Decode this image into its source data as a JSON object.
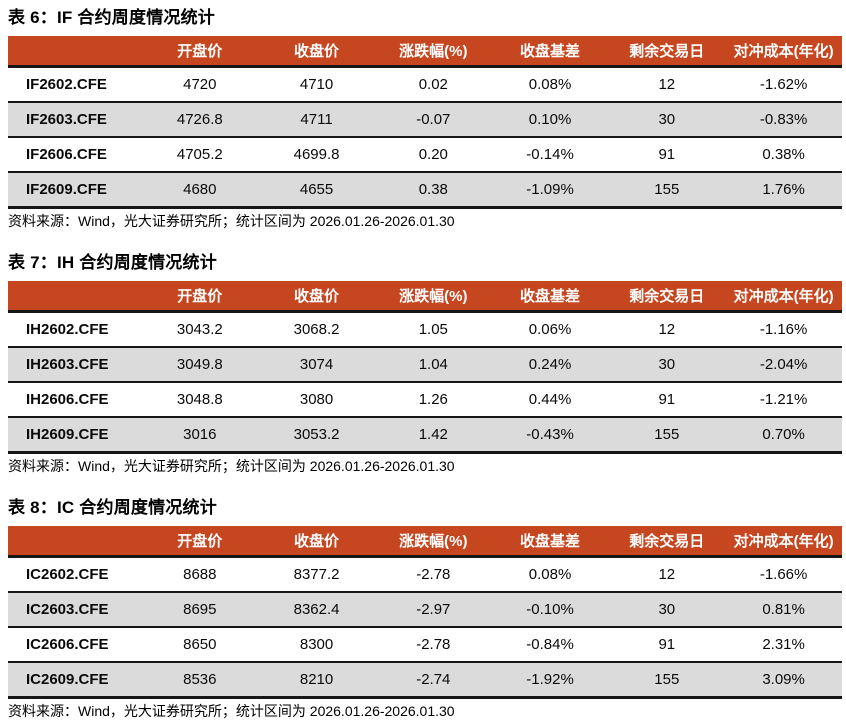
{
  "colors": {
    "header_bg": "#C5461F",
    "header_text": "#ffffff",
    "row_alt_bg": "#DBDBDB",
    "border_dark": "#161616"
  },
  "columns": [
    "开盘价",
    "收盘价",
    "涨跌幅(%)",
    "收盘基差",
    "剩余交易日",
    "对冲成本(年化)"
  ],
  "source_note": "资料来源：Wind，光大证券研究所；统计区间为 2026.01.26-2026.01.30",
  "tables": [
    {
      "title": "表 6：IF 合约周度情况统计",
      "rows": [
        {
          "code": "IF2602.CFE",
          "values": [
            "4720",
            "4710",
            "0.02",
            "0.08%",
            "12",
            "-1.62%"
          ]
        },
        {
          "code": "IF2603.CFE",
          "values": [
            "4726.8",
            "4711",
            "-0.07",
            "0.10%",
            "30",
            "-0.83%"
          ]
        },
        {
          "code": "IF2606.CFE",
          "values": [
            "4705.2",
            "4699.8",
            "0.20",
            "-0.14%",
            "91",
            "0.38%"
          ]
        },
        {
          "code": "IF2609.CFE",
          "values": [
            "4680",
            "4655",
            "0.38",
            "-1.09%",
            "155",
            "1.76%"
          ]
        }
      ]
    },
    {
      "title": "表 7：IH 合约周度情况统计",
      "rows": [
        {
          "code": "IH2602.CFE",
          "values": [
            "3043.2",
            "3068.2",
            "1.05",
            "0.06%",
            "12",
            "-1.16%"
          ]
        },
        {
          "code": "IH2603.CFE",
          "values": [
            "3049.8",
            "3074",
            "1.04",
            "0.24%",
            "30",
            "-2.04%"
          ]
        },
        {
          "code": "IH2606.CFE",
          "values": [
            "3048.8",
            "3080",
            "1.26",
            "0.44%",
            "91",
            "-1.21%"
          ]
        },
        {
          "code": "IH2609.CFE",
          "values": [
            "3016",
            "3053.2",
            "1.42",
            "-0.43%",
            "155",
            "0.70%"
          ]
        }
      ]
    },
    {
      "title": "表 8：IC 合约周度情况统计",
      "rows": [
        {
          "code": "IC2602.CFE",
          "values": [
            "8688",
            "8377.2",
            "-2.78",
            "0.08%",
            "12",
            "-1.66%"
          ]
        },
        {
          "code": "IC2603.CFE",
          "values": [
            "8695",
            "8362.4",
            "-2.97",
            "-0.10%",
            "30",
            "0.81%"
          ]
        },
        {
          "code": "IC2606.CFE",
          "values": [
            "8650",
            "8300",
            "-2.78",
            "-0.84%",
            "91",
            "2.31%"
          ]
        },
        {
          "code": "IC2609.CFE",
          "values": [
            "8536",
            "8210",
            "-2.74",
            "-1.92%",
            "155",
            "3.09%"
          ]
        }
      ]
    }
  ]
}
